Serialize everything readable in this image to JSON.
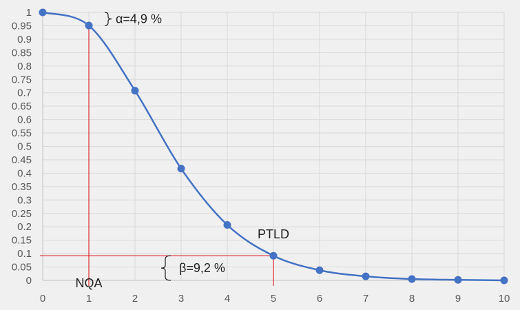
{
  "chart_data": {
    "type": "line",
    "title": "",
    "xlabel": "",
    "ylabel": "",
    "xlim": [
      0,
      10
    ],
    "ylim": [
      0,
      1
    ],
    "grid": true,
    "x": [
      0,
      1,
      2,
      3,
      4,
      5,
      6,
      7,
      8,
      9,
      10
    ],
    "series": [
      {
        "values": [
          1.0,
          0.951,
          0.708,
          0.417,
          0.207,
          0.092,
          0.038,
          0.015,
          0.005,
          0.002,
          0.0
        ]
      }
    ],
    "x_ticks": [
      "0",
      "1",
      "2",
      "3",
      "4",
      "5",
      "6",
      "7",
      "8",
      "9",
      "10"
    ],
    "y_ticks": [
      "0",
      "0.05",
      "0.1",
      "0.15",
      "0.2",
      "0.25",
      "0.3",
      "0.35",
      "0.4",
      "0.45",
      "0.5",
      "0.55",
      "0.6",
      "0.65",
      "0.7",
      "0.75",
      "0.8",
      "0.85",
      "0.9",
      "0.95",
      "1"
    ],
    "annotations": {
      "alpha": "α=4,9 %",
      "beta": "β=9,2 %",
      "nqa": "NQA",
      "ptld": "PTLD",
      "nqa_x": 1,
      "nqa_y": 0.951,
      "ptld_x": 5,
      "ptld_y": 0.092
    },
    "colors": {
      "series": "#4472c4",
      "reference_lines": "#e0000f",
      "grid": "#d9d9d9",
      "axis": "#bfbfbf",
      "background": "#f0f0f0"
    }
  }
}
